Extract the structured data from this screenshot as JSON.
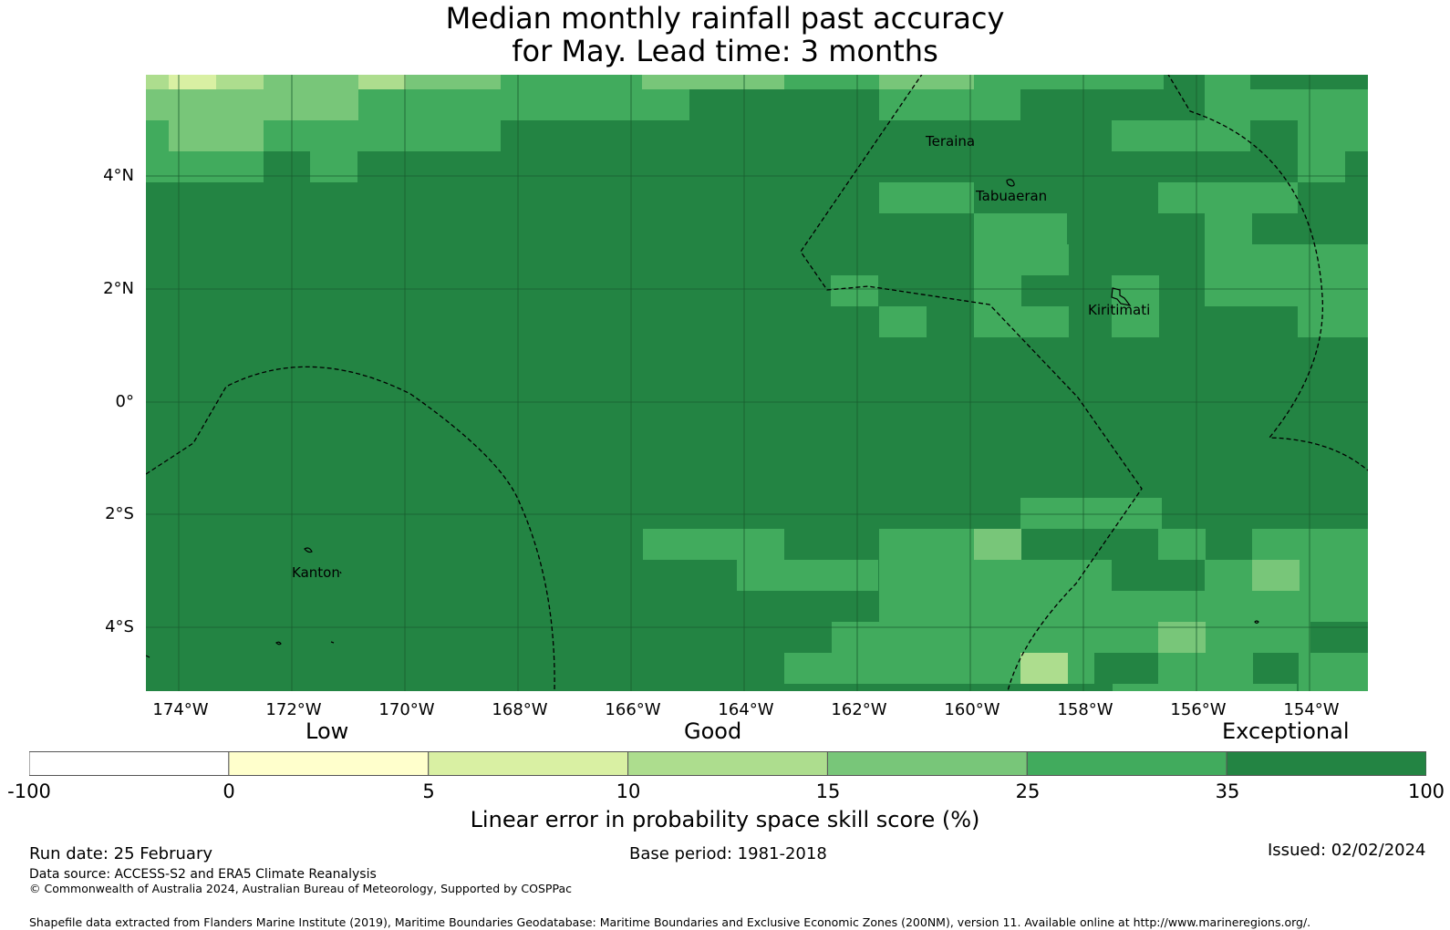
{
  "title": {
    "line1": "Median monthly rainfall past accuracy",
    "line2": "for May. Lead time: 3 months"
  },
  "map": {
    "lat_labels": [
      "4°N",
      "2°N",
      "0°",
      "2°S",
      "4°S"
    ],
    "lon_labels": [
      "174°W",
      "172°W",
      "170°W",
      "168°W",
      "166°W",
      "164°W",
      "162°W",
      "160°W",
      "158°W",
      "156°W",
      "154°W"
    ],
    "places": {
      "teraina": "Teraina",
      "tabuaeran": "Tabuaeran",
      "kiritimati": "Kiritimati",
      "kanton": "Kanton"
    },
    "colors": {
      "c35": "#238443",
      "c25": "#41ab5d",
      "c15": "#78c679",
      "c10": "#addd8e",
      "c5": "#d9f0a3",
      "c0": "#ffffcc",
      "cneg": "#ffffff"
    }
  },
  "colorbar": {
    "categories": {
      "low": "Low",
      "good": "Good",
      "exceptional": "Exceptional"
    },
    "ticks": [
      "-100",
      "0",
      "5",
      "10",
      "15",
      "25",
      "35",
      "100"
    ],
    "colors": [
      "#ffffff",
      "#ffffcc",
      "#d9f0a3",
      "#addd8e",
      "#78c679",
      "#41ab5d",
      "#238443"
    ],
    "label": "Linear error in probability space skill score (%)"
  },
  "footer": {
    "run_date": "Run date: 25 February",
    "base_period": "Base period: 1981-2018",
    "issued": "Issued: 02/02/2024",
    "data_source": "Data source: ACCESS-S2 and ERA5 Climate Reanalysis",
    "copyright": "© Commonwealth of Australia 2024, Australian Bureau of Meteorology, Supported by COSPPac",
    "shapefile": "Shapefile data extracted from Flanders Marine Institute (2019), Maritime Boundaries Geodatabase: Maritime Boundaries and Exclusive Economic Zones (200NM), version 11. Available online at http://www.marineregions.org/."
  }
}
